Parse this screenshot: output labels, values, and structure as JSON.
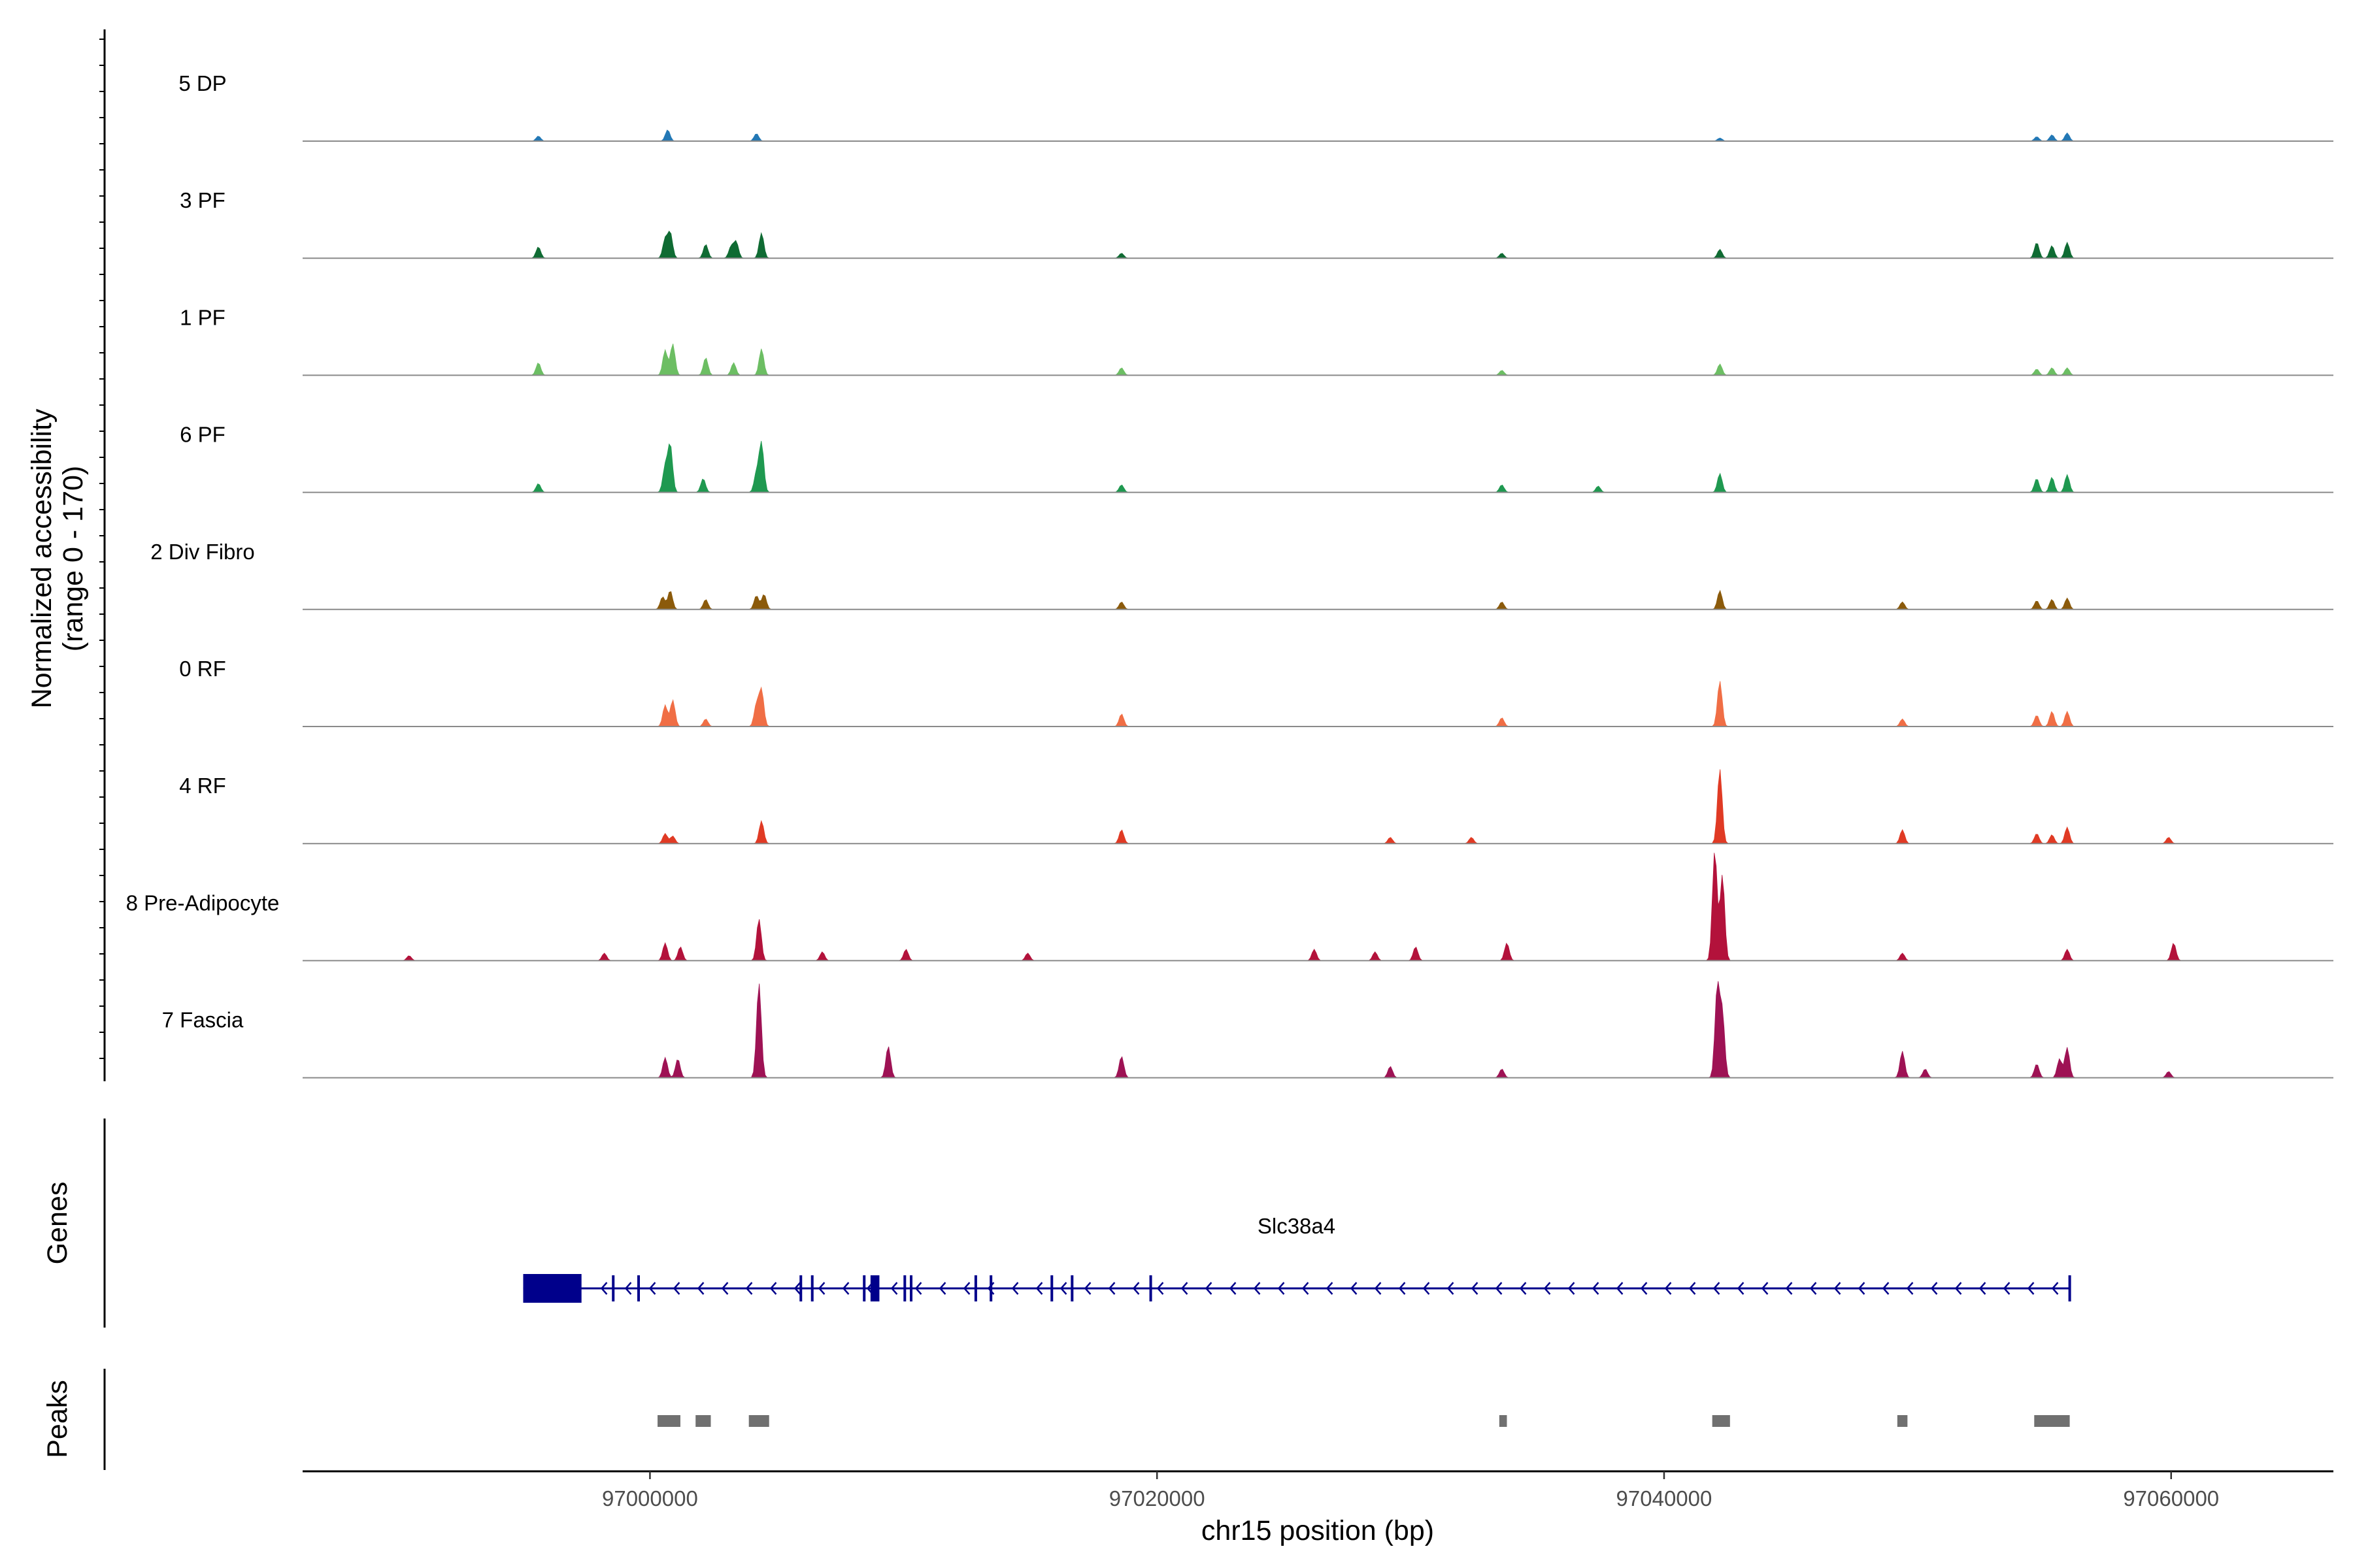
{
  "chart_data": {
    "type": "area",
    "title": "",
    "ylabel": "Normalized accessibility",
    "ylabel_range": "(range 0 - 170)",
    "ylim": [
      0,
      170
    ],
    "xlabel": "chr15 position (bp)",
    "xlim": [
      96986300,
      97066400
    ],
    "x_ticks": [
      97000000,
      97020000,
      97040000,
      97060000
    ],
    "x_tick_labels": [
      "97000000",
      "97020000",
      "97040000",
      "97060000"
    ],
    "grid": false,
    "tracks": [
      {
        "name": "5 DP",
        "color": "#2378B5",
        "peaks": [
          [
            96995600,
            8
          ],
          [
            97000700,
            18
          ],
          [
            97004200,
            12
          ],
          [
            97042200,
            5
          ],
          [
            97054700,
            7
          ],
          [
            97055300,
            10
          ],
          [
            97055900,
            13
          ]
        ]
      },
      {
        "name": "3 PF",
        "color": "#0F6B33",
        "peaks": [
          [
            96995600,
            18
          ],
          [
            97000600,
            30
          ],
          [
            97000800,
            40
          ],
          [
            97002200,
            22
          ],
          [
            97003200,
            18
          ],
          [
            97003400,
            26
          ],
          [
            97004400,
            40
          ],
          [
            97018600,
            8
          ],
          [
            97033600,
            8
          ],
          [
            97042200,
            14
          ],
          [
            97054700,
            25
          ],
          [
            97055300,
            20
          ],
          [
            97055900,
            25
          ]
        ]
      },
      {
        "name": "1 PF",
        "color": "#6CBE63",
        "peaks": [
          [
            96995600,
            20
          ],
          [
            97000600,
            40
          ],
          [
            97000900,
            50
          ],
          [
            97002200,
            28
          ],
          [
            97003300,
            20
          ],
          [
            97004400,
            42
          ],
          [
            97018600,
            12
          ],
          [
            97033600,
            8
          ],
          [
            97042200,
            18
          ],
          [
            97054700,
            10
          ],
          [
            97055300,
            12
          ],
          [
            97055900,
            12
          ]
        ]
      },
      {
        "name": "6 PF",
        "color": "#1F9950",
        "peaks": [
          [
            96995600,
            14
          ],
          [
            97000600,
            40
          ],
          [
            97000800,
            75
          ],
          [
            97002100,
            22
          ],
          [
            97004200,
            30
          ],
          [
            97004400,
            78
          ],
          [
            97018600,
            12
          ],
          [
            97033600,
            12
          ],
          [
            97037400,
            10
          ],
          [
            97042200,
            30
          ],
          [
            97054700,
            22
          ],
          [
            97055300,
            24
          ],
          [
            97055900,
            28
          ]
        ]
      },
      {
        "name": "2 Div Fibro",
        "color": "#8B5A0B",
        "peaks": [
          [
            97000500,
            20
          ],
          [
            97000800,
            30
          ],
          [
            97002200,
            16
          ],
          [
            97004200,
            22
          ],
          [
            97004500,
            24
          ],
          [
            97018600,
            12
          ],
          [
            97033600,
            12
          ],
          [
            97042200,
            30
          ],
          [
            97049400,
            12
          ],
          [
            97054700,
            14
          ],
          [
            97055300,
            16
          ],
          [
            97055900,
            18
          ]
        ]
      },
      {
        "name": "0 RF",
        "color": "#F06E45",
        "peaks": [
          [
            97000600,
            34
          ],
          [
            97000900,
            42
          ],
          [
            97002200,
            12
          ],
          [
            97004200,
            34
          ],
          [
            97004400,
            58
          ],
          [
            97018600,
            20
          ],
          [
            97033600,
            14
          ],
          [
            97042200,
            72
          ],
          [
            97049400,
            12
          ],
          [
            97054700,
            18
          ],
          [
            97055300,
            24
          ],
          [
            97055900,
            24
          ]
        ]
      },
      {
        "name": "4 RF",
        "color": "#E03A24",
        "peaks": [
          [
            97000600,
            16
          ],
          [
            97000900,
            12
          ],
          [
            97004400,
            36
          ],
          [
            97018600,
            22
          ],
          [
            97029200,
            10
          ],
          [
            97032400,
            10
          ],
          [
            97042200,
            118
          ],
          [
            97049400,
            22
          ],
          [
            97054700,
            16
          ],
          [
            97055300,
            14
          ],
          [
            97055900,
            26
          ],
          [
            97059900,
            10
          ]
        ]
      },
      {
        "name": "8 Pre-Adipocyte",
        "color": "#B3123B",
        "peaks": [
          [
            96990500,
            8
          ],
          [
            96998200,
            12
          ],
          [
            97000600,
            28
          ],
          [
            97001200,
            22
          ],
          [
            97004300,
            66
          ],
          [
            97006800,
            14
          ],
          [
            97010100,
            18
          ],
          [
            97014900,
            12
          ],
          [
            97026200,
            18
          ],
          [
            97028600,
            14
          ],
          [
            97030200,
            22
          ],
          [
            97033800,
            28
          ],
          [
            97042000,
            175
          ],
          [
            97042300,
            135
          ],
          [
            97049400,
            12
          ],
          [
            97055900,
            18
          ],
          [
            97060100,
            28
          ]
        ]
      },
      {
        "name": "7 Fascia",
        "color": "#9E1254",
        "peaks": [
          [
            97000600,
            32
          ],
          [
            97001100,
            30
          ],
          [
            97004300,
            150
          ],
          [
            97009400,
            50
          ],
          [
            97018600,
            34
          ],
          [
            97029200,
            18
          ],
          [
            97033600,
            14
          ],
          [
            97042100,
            142
          ],
          [
            97042300,
            100
          ],
          [
            97049400,
            42
          ],
          [
            97050300,
            14
          ],
          [
            97054700,
            22
          ],
          [
            97055600,
            30
          ],
          [
            97055900,
            48
          ],
          [
            97059900,
            10
          ]
        ]
      }
    ],
    "gene": {
      "name": "Slc38a4",
      "color": "#00008B",
      "start": 96995000,
      "end": 97056000,
      "strand": "-",
      "exons": [
        [
          96995000,
          96997300
        ],
        [
          96998500,
          96998560
        ],
        [
          96999500,
          96999560
        ],
        [
          97005900,
          97005970
        ],
        [
          97006350,
          97006400
        ],
        [
          97008400,
          97008460
        ],
        [
          97008700,
          97009050
        ],
        [
          97010000,
          97010050
        ],
        [
          97010250,
          97010330
        ],
        [
          97012800,
          97012850
        ],
        [
          97013400,
          97013450
        ],
        [
          97015800,
          97015860
        ],
        [
          97016600,
          97016660
        ],
        [
          97019700,
          97019760
        ]
      ]
    },
    "peaks_track": {
      "name": "Peaks",
      "color": "#707070",
      "regions": [
        [
          97000300,
          97001200
        ],
        [
          97001800,
          97002400
        ],
        [
          97003900,
          97004700
        ],
        [
          97033500,
          97033800
        ],
        [
          97041900,
          97042600
        ],
        [
          97049200,
          97049600
        ],
        [
          97054600,
          97056000
        ]
      ]
    },
    "panel_labels": {
      "accessibility": "Normalized accessibility",
      "genes": "Genes",
      "peaks": "Peaks"
    }
  }
}
